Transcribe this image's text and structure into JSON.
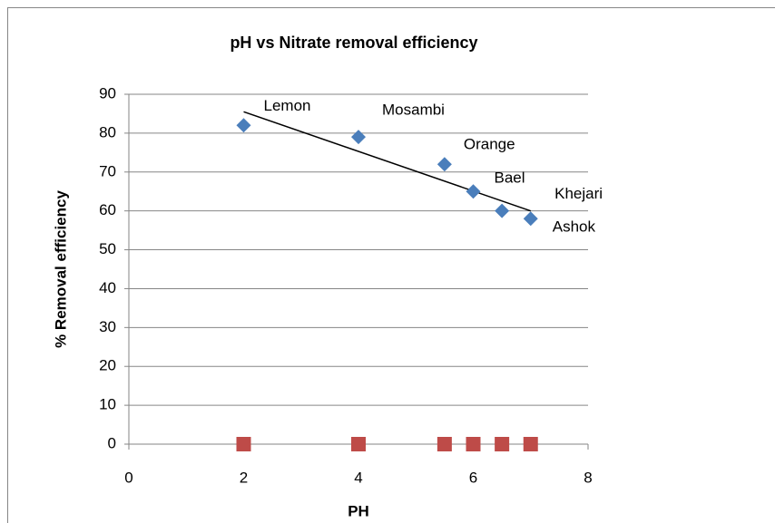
{
  "chart_data": {
    "type": "scatter",
    "title": "pH vs  Nitrate removal efficiency",
    "xlabel": "PH",
    "ylabel": "% Removal efficiency",
    "x": [
      2,
      4,
      5.5,
      6,
      6.5,
      7
    ],
    "series": [
      {
        "color": "#4a7ebb",
        "marker": "diamond",
        "values": [
          82,
          79,
          72,
          65,
          60,
          58
        ]
      },
      {
        "color": "#be4b48",
        "marker": "square",
        "values": [
          0,
          0,
          0,
          0,
          0,
          0
        ]
      }
    ],
    "point_labels": [
      "Lemon",
      "Mosambi",
      "Orange",
      "Bael",
      "Khejari",
      "Ashok"
    ],
    "trendline": {
      "x": [
        2,
        7
      ],
      "values": [
        85.5,
        60
      ],
      "color": "#000000"
    },
    "xlim": [
      0,
      8
    ],
    "xticks": [
      0,
      2,
      4,
      6,
      8
    ],
    "ylim": [
      0,
      90
    ],
    "yticks": [
      0,
      10,
      20,
      30,
      40,
      50,
      60,
      70,
      80,
      90
    ],
    "grid": true
  }
}
